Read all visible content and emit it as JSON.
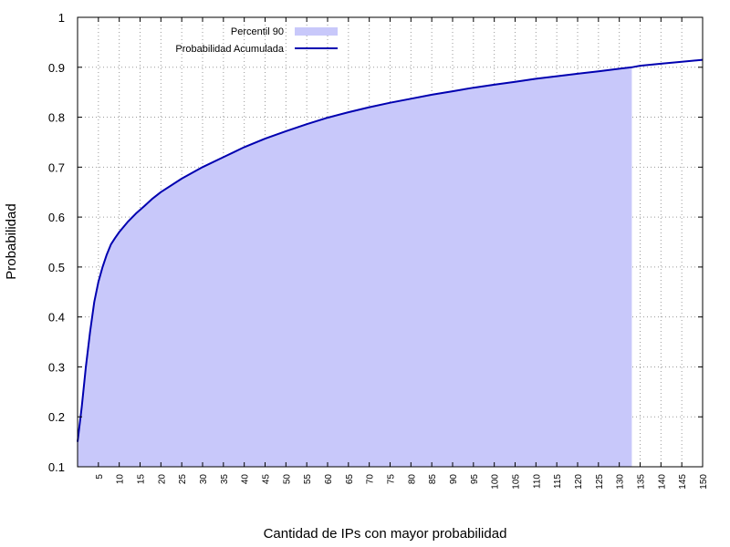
{
  "chart_data": {
    "type": "area",
    "title": "",
    "xlabel": "Cantidad de IPs con mayor probabilidad",
    "ylabel": "Probabilidad",
    "xlim": [
      0,
      150
    ],
    "ylim": [
      0.1,
      1
    ],
    "grid": true,
    "legend_position": "top-left",
    "y_ticks": [
      "0.1",
      "0.2",
      "0.3",
      "0.4",
      "0.5",
      "0.6",
      "0.7",
      "0.8",
      "0.9",
      "1"
    ],
    "x_ticks": [
      "5",
      "10",
      "15",
      "20",
      "25",
      "30",
      "35",
      "40",
      "45",
      "50",
      "55",
      "60",
      "65",
      "70",
      "75",
      "80",
      "85",
      "90",
      "95",
      "100",
      "105",
      "110",
      "115",
      "120",
      "125",
      "130",
      "135",
      "140",
      "145",
      "150"
    ],
    "series": [
      {
        "name": "Probabilidad Acumulada",
        "kind": "line",
        "color": "#0000b0",
        "x": [
          0,
          1,
          2,
          3,
          4,
          5,
          6,
          7,
          8,
          9,
          10,
          12,
          14,
          16,
          18,
          20,
          25,
          30,
          35,
          40,
          45,
          50,
          55,
          60,
          65,
          70,
          75,
          80,
          85,
          90,
          95,
          100,
          105,
          110,
          115,
          120,
          125,
          130,
          133,
          135,
          140,
          145,
          150
        ],
        "y": [
          0.15,
          0.22,
          0.3,
          0.37,
          0.43,
          0.47,
          0.5,
          0.525,
          0.545,
          0.558,
          0.57,
          0.59,
          0.607,
          0.622,
          0.637,
          0.65,
          0.677,
          0.7,
          0.72,
          0.74,
          0.757,
          0.772,
          0.786,
          0.799,
          0.81,
          0.82,
          0.829,
          0.837,
          0.845,
          0.852,
          0.859,
          0.865,
          0.871,
          0.877,
          0.882,
          0.887,
          0.892,
          0.897,
          0.9,
          0.903,
          0.907,
          0.911,
          0.915
        ]
      },
      {
        "name": "Percentil 90",
        "kind": "area",
        "color": "#c8c8fa",
        "x_end": 133
      }
    ]
  }
}
